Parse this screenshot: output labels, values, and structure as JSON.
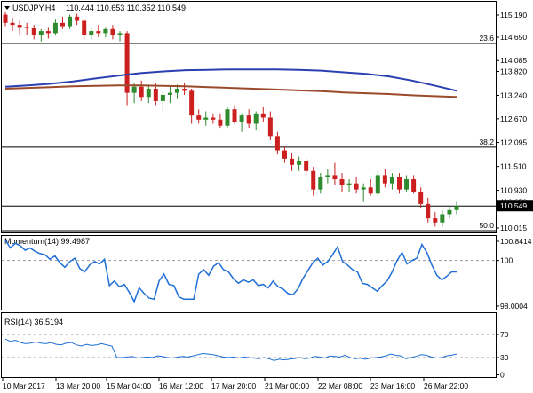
{
  "main_panel": {
    "symbol": "USDJPY,H4",
    "ohlc": "110.444 110.653 110.352 110.549",
    "price_ticks": [
      "115.190",
      "114.650",
      "114.085",
      "113.820",
      "113.240",
      "112.670",
      "112.095",
      "111.510",
      "110.930",
      "110.650",
      "110.015"
    ],
    "price_tick_values": [
      115.19,
      114.65,
      114.085,
      113.82,
      113.24,
      112.67,
      112.095,
      111.51,
      110.93,
      110.65,
      110.015
    ],
    "current_price_label": "110.549",
    "current_price": 110.549,
    "fib_levels": [
      {
        "label": "23.6",
        "price": 114.5
      },
      {
        "label": "38.2",
        "price": 111.98
      },
      {
        "label": "50.0",
        "price": 109.95
      }
    ],
    "colors": {
      "bull": "#2e8b2e",
      "bear": "#cc1f1f",
      "sma_blue": "#2a3fb0",
      "sma_brown": "#9a4a2a",
      "level_line": "#000000"
    }
  },
  "momentum_panel": {
    "title": "Momentum(14) 99.4987",
    "ticks": [
      "100.8414",
      "100",
      "98.0004"
    ],
    "tick_values": [
      100.8414,
      100,
      98.0004
    ],
    "line_color": "#1f6fd6"
  },
  "rsi_panel": {
    "title": "RSI(14) 36.5194",
    "ticks": [
      "70",
      "30",
      "0"
    ],
    "tick_values": [
      70,
      30,
      0
    ],
    "line_color": "#1f6fd6"
  },
  "time_axis": [
    "10 Mar 2017",
    "13 Mar 20:00",
    "15 Mar 04:00",
    "16 Mar 12:00",
    "17 Mar 20:00",
    "21 Mar 00:00",
    "22 Mar 08:00",
    "23 Mar 16:00",
    "26 Mar 22:00"
  ],
  "chart_data": {
    "type": "candlestick",
    "candles_ohlc": [
      [
        115.2,
        115.28,
        114.92,
        115.0
      ],
      [
        115.0,
        115.12,
        114.8,
        114.95
      ],
      [
        114.95,
        115.05,
        114.72,
        114.9
      ],
      [
        114.9,
        115.0,
        114.7,
        114.88
      ],
      [
        114.88,
        114.95,
        114.6,
        114.7
      ],
      [
        114.7,
        114.85,
        114.55,
        114.8
      ],
      [
        114.8,
        114.9,
        114.62,
        114.75
      ],
      [
        114.75,
        115.1,
        114.7,
        115.0
      ],
      [
        115.0,
        115.15,
        114.85,
        114.92
      ],
      [
        114.92,
        115.2,
        114.85,
        115.15
      ],
      [
        115.15,
        115.22,
        114.95,
        115.05
      ],
      [
        115.05,
        115.1,
        114.6,
        114.7
      ],
      [
        114.7,
        114.9,
        114.6,
        114.8
      ],
      [
        114.8,
        114.95,
        114.65,
        114.75
      ],
      [
        114.75,
        114.9,
        114.65,
        114.85
      ],
      [
        114.85,
        114.95,
        114.6,
        114.7
      ],
      [
        114.7,
        114.8,
        114.55,
        114.75
      ],
      [
        114.75,
        114.8,
        113.0,
        113.3
      ],
      [
        113.3,
        113.55,
        113.05,
        113.45
      ],
      [
        113.45,
        113.6,
        113.1,
        113.2
      ],
      [
        113.2,
        113.5,
        113.05,
        113.4
      ],
      [
        113.4,
        113.55,
        113.0,
        113.1
      ],
      [
        113.1,
        113.35,
        112.85,
        113.25
      ],
      [
        113.25,
        113.45,
        113.05,
        113.3
      ],
      [
        113.3,
        113.5,
        113.15,
        113.4
      ],
      [
        113.4,
        113.55,
        113.25,
        113.35
      ],
      [
        113.35,
        113.4,
        112.55,
        112.75
      ],
      [
        112.75,
        112.9,
        112.55,
        112.65
      ],
      [
        112.65,
        112.85,
        112.5,
        112.7
      ],
      [
        112.7,
        112.8,
        112.55,
        112.65
      ],
      [
        112.65,
        112.8,
        112.45,
        112.5
      ],
      [
        112.5,
        112.95,
        112.45,
        112.9
      ],
      [
        112.9,
        113.0,
        112.55,
        112.6
      ],
      [
        112.6,
        112.8,
        112.35,
        112.75
      ],
      [
        112.75,
        112.9,
        112.45,
        112.55
      ],
      [
        112.55,
        112.85,
        112.4,
        112.8
      ],
      [
        112.8,
        112.95,
        112.6,
        112.7
      ],
      [
        112.7,
        112.85,
        112.15,
        112.25
      ],
      [
        112.25,
        112.35,
        111.8,
        111.9
      ],
      [
        111.9,
        112.0,
        111.6,
        111.7
      ],
      [
        111.7,
        111.85,
        111.4,
        111.55
      ],
      [
        111.55,
        111.75,
        111.4,
        111.65
      ],
      [
        111.65,
        111.7,
        111.3,
        111.4
      ],
      [
        111.4,
        111.5,
        110.8,
        110.95
      ],
      [
        110.95,
        111.35,
        110.85,
        111.25
      ],
      [
        111.25,
        111.45,
        111.1,
        111.3
      ],
      [
        111.3,
        111.6,
        111.05,
        111.2
      ],
      [
        111.2,
        111.35,
        110.9,
        111.05
      ],
      [
        111.05,
        111.2,
        110.9,
        111.1
      ],
      [
        111.1,
        111.25,
        110.85,
        110.95
      ],
      [
        110.95,
        111.1,
        110.65,
        111.0
      ],
      [
        111.0,
        111.2,
        110.8,
        110.85
      ],
      [
        110.85,
        111.4,
        110.8,
        111.3
      ],
      [
        111.3,
        111.45,
        111.0,
        111.1
      ],
      [
        111.1,
        111.35,
        110.95,
        111.25
      ],
      [
        111.25,
        111.35,
        110.85,
        110.95
      ],
      [
        110.95,
        111.3,
        110.9,
        111.2
      ],
      [
        111.2,
        111.3,
        110.85,
        110.9
      ],
      [
        110.9,
        111.0,
        110.5,
        110.6
      ],
      [
        110.6,
        110.75,
        110.15,
        110.25
      ],
      [
        110.25,
        110.4,
        110.05,
        110.15
      ],
      [
        110.15,
        110.45,
        110.05,
        110.35
      ],
      [
        110.35,
        110.55,
        110.25,
        110.45
      ],
      [
        110.45,
        110.65,
        110.35,
        110.55
      ]
    ],
    "sma_blue": [
      113.45,
      113.48,
      113.52,
      113.58,
      113.65,
      113.72,
      113.78,
      113.82,
      113.85,
      113.86,
      113.87,
      113.87,
      113.87,
      113.86,
      113.84,
      113.8,
      113.76,
      113.7,
      113.6,
      113.48,
      113.35
    ],
    "sma_brown": [
      113.4,
      113.42,
      113.44,
      113.46,
      113.47,
      113.48,
      113.48,
      113.47,
      113.46,
      113.44,
      113.42,
      113.4,
      113.38,
      113.36,
      113.34,
      113.31,
      113.29,
      113.27,
      113.24,
      113.22,
      113.2
    ],
    "momentum": [
      100.9,
      100.55,
      100.75,
      100.65,
      100.45,
      100.55,
      100.4,
      100.3,
      100.25,
      100.05,
      100.2,
      99.9,
      99.7,
      99.95,
      100.1,
      99.65,
      99.5,
      99.8,
      99.95,
      99.85,
      100.05,
      98.9,
      99.1,
      98.85,
      98.95,
      98.6,
      98.2,
      98.8,
      98.55,
      98.35,
      98.3,
      99.1,
      99.4,
      98.95,
      98.9,
      98.4,
      98.3,
      98.3,
      98.3,
      99.4,
      99.6,
      99.35,
      99.75,
      99.9,
      99.6,
      99.5,
      99.2,
      99.0,
      99.15,
      99.05,
      99.15,
      98.9,
      98.95,
      98.8,
      99.1,
      98.85,
      98.75,
      98.55,
      98.5,
      98.75,
      99.2,
      99.55,
      99.9,
      100.1,
      99.8,
      99.95,
      100.25,
      100.6,
      99.95,
      99.8,
      99.6,
      99.5,
      99.0,
      98.95,
      98.8,
      98.65,
      98.9,
      99.1,
      99.5,
      100.0,
      100.35,
      99.85,
      100.0,
      100.1,
      100.7,
      100.35,
      99.8,
      99.35,
      99.15,
      99.3,
      99.5,
      99.5
    ],
    "rsi": [
      62,
      58,
      60,
      56,
      54,
      55,
      57,
      55,
      54,
      56,
      53,
      52,
      55,
      56,
      52,
      50,
      53,
      51,
      52,
      54,
      52,
      50,
      30,
      30,
      31,
      32,
      29,
      30,
      31,
      30,
      33,
      32,
      30,
      29,
      31,
      32,
      31,
      33,
      35,
      37,
      36,
      35,
      33,
      31,
      30,
      31,
      29,
      31,
      30,
      29,
      28,
      30,
      28,
      25,
      27,
      26,
      27,
      28,
      30,
      28,
      29,
      32,
      31,
      29,
      33,
      32,
      31,
      34,
      30,
      28,
      29,
      27,
      29,
      30,
      31,
      33,
      36,
      34,
      33,
      28,
      30,
      32,
      35,
      34,
      31,
      29,
      30,
      33,
      34,
      36
    ]
  }
}
